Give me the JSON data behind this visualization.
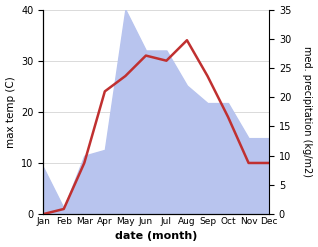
{
  "months": [
    "Jan",
    "Feb",
    "Mar",
    "Apr",
    "May",
    "Jun",
    "Jul",
    "Aug",
    "Sep",
    "Oct",
    "Nov",
    "Dec"
  ],
  "temp": [
    0,
    1,
    10,
    24,
    27,
    31,
    30,
    34,
    27,
    19,
    10,
    10
  ],
  "precip": [
    8,
    1,
    10,
    11,
    35,
    28,
    28,
    22,
    19,
    19,
    13,
    13
  ],
  "temp_color": "#c03030",
  "precip_color": "#b8c4ee",
  "ylim_temp": [
    0,
    40
  ],
  "ylim_precip": [
    0,
    35
  ],
  "yticks_temp": [
    0,
    10,
    20,
    30,
    40
  ],
  "yticks_precip": [
    0,
    5,
    10,
    15,
    20,
    25,
    30,
    35
  ],
  "xlabel": "date (month)",
  "ylabel_left": "max temp (C)",
  "ylabel_right": "med. precipitation (kg/m2)",
  "temp_linewidth": 1.8,
  "background_color": "#ffffff",
  "grid_color": "#cccccc"
}
